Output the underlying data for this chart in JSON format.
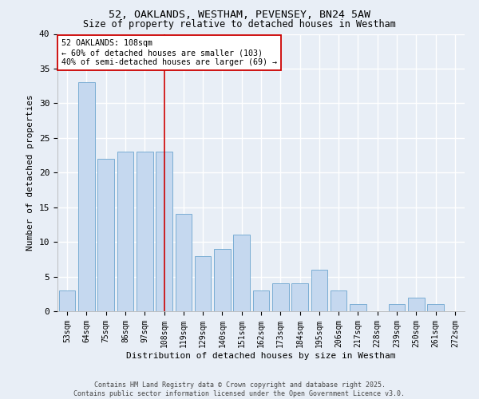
{
  "title_line1": "52, OAKLANDS, WESTHAM, PEVENSEY, BN24 5AW",
  "title_line2": "Size of property relative to detached houses in Westham",
  "xlabel": "Distribution of detached houses by size in Westham",
  "ylabel": "Number of detached properties",
  "categories": [
    "53sqm",
    "64sqm",
    "75sqm",
    "86sqm",
    "97sqm",
    "108sqm",
    "119sqm",
    "129sqm",
    "140sqm",
    "151sqm",
    "162sqm",
    "173sqm",
    "184sqm",
    "195sqm",
    "206sqm",
    "217sqm",
    "228sqm",
    "239sqm",
    "250sqm",
    "261sqm",
    "272sqm"
  ],
  "values": [
    3,
    33,
    22,
    23,
    23,
    23,
    14,
    8,
    9,
    11,
    3,
    4,
    4,
    6,
    3,
    1,
    0,
    1,
    2,
    1,
    0
  ],
  "bar_color": "#c5d8ef",
  "bar_edge_color": "#7aadd4",
  "highlight_index": 5,
  "highlight_line_color": "#cc0000",
  "ylim": [
    0,
    40
  ],
  "yticks": [
    0,
    5,
    10,
    15,
    20,
    25,
    30,
    35,
    40
  ],
  "annotation_text": "52 OAKLANDS: 108sqm\n← 60% of detached houses are smaller (103)\n40% of semi-detached houses are larger (69) →",
  "annotation_box_color": "#ffffff",
  "annotation_box_edge": "#cc0000",
  "footer_line1": "Contains HM Land Registry data © Crown copyright and database right 2025.",
  "footer_line2": "Contains public sector information licensed under the Open Government Licence v3.0.",
  "background_color": "#e8eef6",
  "grid_color": "#ffffff"
}
